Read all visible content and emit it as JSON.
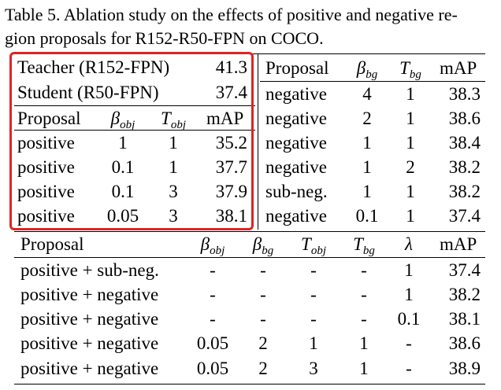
{
  "caption": {
    "line1": "Table 5. Ablation study on the effects of positive and negative re-",
    "line2": "gion proposals for R152-R50-FPN on COCO."
  },
  "left_panel": {
    "teacher_label": "Teacher (R152-FPN)",
    "teacher_map": "41.3",
    "student_label": "Student (R50-FPN)",
    "student_map": "37.4",
    "header": {
      "proposal": "Proposal",
      "beta_sym": "β",
      "beta_sub": "obj",
      "t_sym": "T",
      "t_sub": "obj",
      "map": "mAP"
    },
    "rows": [
      [
        "positive",
        "1",
        "1",
        "35.2"
      ],
      [
        "positive",
        "0.1",
        "1",
        "37.7"
      ],
      [
        "positive",
        "0.1",
        "3",
        "37.9"
      ],
      [
        "positive",
        "0.05",
        "3",
        "38.1"
      ]
    ]
  },
  "right_panel": {
    "header": {
      "proposal": "Proposal",
      "beta_sym": "β",
      "beta_sub": "bg",
      "t_sym": "T",
      "t_sub": "bg",
      "map": "mAP"
    },
    "rows": [
      [
        "negative",
        "4",
        "1",
        "38.3"
      ],
      [
        "negative",
        "2",
        "1",
        "38.6"
      ],
      [
        "negative",
        "1",
        "1",
        "38.4"
      ],
      [
        "negative",
        "1",
        "2",
        "38.2"
      ],
      [
        "sub-neg.",
        "1",
        "1",
        "38.2"
      ],
      [
        "negative",
        "0.1",
        "1",
        "37.4"
      ]
    ]
  },
  "bottom_panel": {
    "header": {
      "proposal": "Proposal",
      "beta_obj_sym": "β",
      "beta_obj_sub": "obj",
      "beta_bg_sym": "β",
      "beta_bg_sub": "bg",
      "t_obj_sym": "T",
      "t_obj_sub": "obj",
      "t_bg_sym": "T",
      "t_bg_sub": "bg",
      "lambda": "λ",
      "map": "mAP"
    },
    "rows": [
      [
        "positive + sub-neg.",
        "-",
        "-",
        "-",
        "-",
        "1",
        "37.4"
      ],
      [
        "positive + negative",
        "-",
        "-",
        "-",
        "-",
        "1",
        "38.2"
      ],
      [
        "positive + negative",
        "-",
        "-",
        "-",
        "-",
        "0.1",
        "38.1"
      ],
      [
        "positive + negative",
        "0.05",
        "2",
        "1",
        "1",
        "-",
        "38.6"
      ],
      [
        "positive + negative",
        "0.05",
        "2",
        "3",
        "1",
        "-",
        "38.9"
      ]
    ]
  }
}
